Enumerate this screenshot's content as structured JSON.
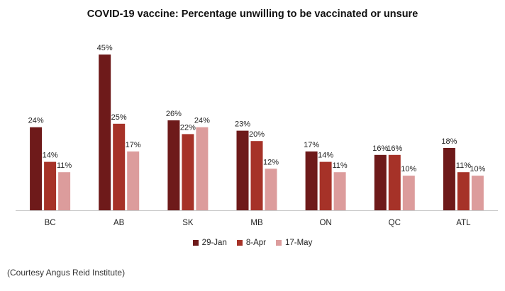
{
  "chart_data": {
    "type": "bar",
    "title": "COVID-19 vaccine: Percentage unwilling to be vaccinated or unsure",
    "categories": [
      "BC",
      "AB",
      "SK",
      "MB",
      "ON",
      "QC",
      "ATL"
    ],
    "series": [
      {
        "name": "29-Jan",
        "values": [
          24,
          45,
          26,
          23,
          17,
          16,
          18
        ],
        "color": "#6e1a1a"
      },
      {
        "name": "8-Apr",
        "values": [
          14,
          25,
          22,
          20,
          14,
          16,
          11
        ],
        "color": "#a63228"
      },
      {
        "name": "17-May",
        "values": [
          11,
          17,
          24,
          12,
          11,
          10,
          10
        ],
        "color": "#dc9c9c"
      }
    ],
    "value_suffix": "%",
    "ylim": [
      0,
      45
    ],
    "grid": false,
    "legend_position": "bottom"
  },
  "caption": "(Courtesy Angus Reid Institute)"
}
